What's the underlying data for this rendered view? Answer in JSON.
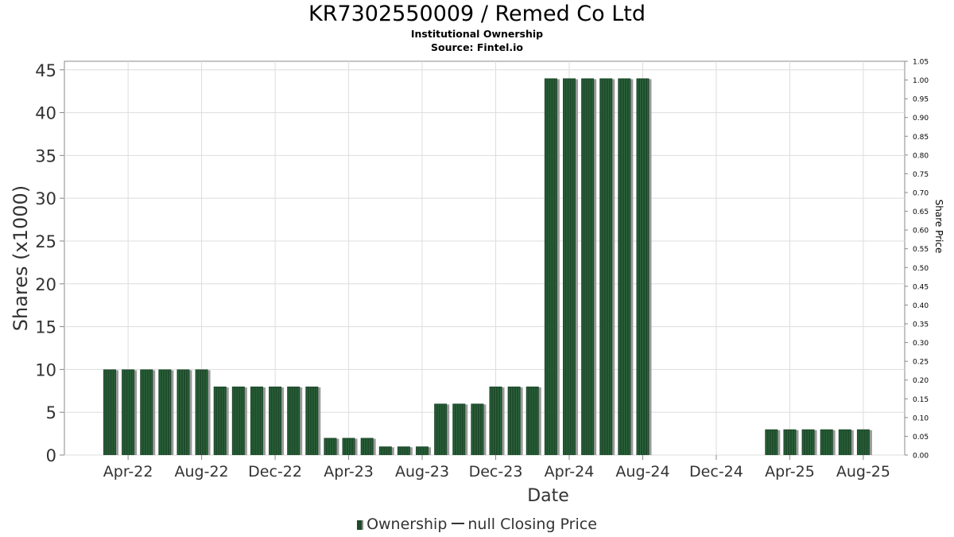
{
  "header": {
    "title": "KR7302550009 / Remed Co Ltd",
    "subtitle": "Institutional Ownership",
    "source": "Source: Fintel.io"
  },
  "legend": {
    "ownership": "Ownership",
    "price": "null Closing Price"
  },
  "colors": {
    "bar": "#1e4a2b",
    "bar_stripe": "#2d6a3e",
    "bar_shadow": "#9a9a9a",
    "grid": "#dddddd",
    "axis": "#888888"
  },
  "chart_data": {
    "type": "bar",
    "xlabel": "Date",
    "ylabel": "Shares (x1000)",
    "y2label": "Share Price",
    "ylim": [
      0,
      46
    ],
    "y_ticks": [
      0,
      5,
      10,
      15,
      20,
      25,
      30,
      35,
      40,
      45
    ],
    "y2lim": [
      0,
      1.05
    ],
    "y2_ticks": [
      "0.00",
      "0.05",
      "0.10",
      "0.15",
      "0.20",
      "0.25",
      "0.30",
      "0.35",
      "0.40",
      "0.45",
      "0.50",
      "0.55",
      "0.60",
      "0.65",
      "0.70",
      "0.75",
      "0.80",
      "0.85",
      "0.90",
      "0.95",
      "1.00",
      "1.05"
    ],
    "x_tick_labels": [
      "Apr-22",
      "Aug-22",
      "Dec-22",
      "Apr-23",
      "Aug-23",
      "Dec-23",
      "Apr-24",
      "Aug-24",
      "Dec-24",
      "Apr-25",
      "Aug-25"
    ],
    "grid": true,
    "legend_position": "bottom",
    "series": [
      {
        "name": "Ownership",
        "values": [
          {
            "date": "2022-03-31",
            "value": 10
          },
          {
            "date": "2022-04-30",
            "value": 10
          },
          {
            "date": "2022-05-31",
            "value": 10
          },
          {
            "date": "2022-06-30",
            "value": 10
          },
          {
            "date": "2022-07-31",
            "value": 10
          },
          {
            "date": "2022-08-31",
            "value": 10
          },
          {
            "date": "2022-09-30",
            "value": 8
          },
          {
            "date": "2022-10-31",
            "value": 8
          },
          {
            "date": "2022-11-30",
            "value": 8
          },
          {
            "date": "2022-12-31",
            "value": 8
          },
          {
            "date": "2023-01-31",
            "value": 8
          },
          {
            "date": "2023-02-28",
            "value": 8
          },
          {
            "date": "2023-03-31",
            "value": 2
          },
          {
            "date": "2023-04-30",
            "value": 2
          },
          {
            "date": "2023-05-31",
            "value": 2
          },
          {
            "date": "2023-06-30",
            "value": 1
          },
          {
            "date": "2023-07-31",
            "value": 1
          },
          {
            "date": "2023-08-31",
            "value": 1
          },
          {
            "date": "2023-09-30",
            "value": 6
          },
          {
            "date": "2023-10-31",
            "value": 6
          },
          {
            "date": "2023-11-30",
            "value": 6
          },
          {
            "date": "2023-12-31",
            "value": 8
          },
          {
            "date": "2024-01-31",
            "value": 8
          },
          {
            "date": "2024-02-29",
            "value": 8
          },
          {
            "date": "2024-03-31",
            "value": 44
          },
          {
            "date": "2024-04-30",
            "value": 44
          },
          {
            "date": "2024-05-31",
            "value": 44
          },
          {
            "date": "2024-06-30",
            "value": 44
          },
          {
            "date": "2024-07-31",
            "value": 44
          },
          {
            "date": "2024-08-31",
            "value": 44
          },
          {
            "date": "2025-03-31",
            "value": 3
          },
          {
            "date": "2025-04-30",
            "value": 3
          },
          {
            "date": "2025-05-31",
            "value": 3
          },
          {
            "date": "2025-06-30",
            "value": 3
          },
          {
            "date": "2025-07-31",
            "value": 3
          },
          {
            "date": "2025-08-31",
            "value": 3
          }
        ]
      }
    ]
  }
}
